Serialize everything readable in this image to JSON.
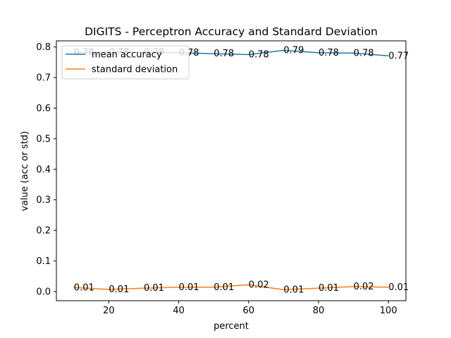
{
  "chart_data": {
    "type": "line",
    "title": "DIGITS - Perceptron Accuracy and Standard Deviation",
    "xlabel": "percent",
    "ylabel": "value (acc or std)",
    "xlim": [
      5,
      105
    ],
    "ylim": [
      -0.03,
      0.82
    ],
    "xticks": [
      20,
      40,
      60,
      80,
      100
    ],
    "yticks": [
      0.0,
      0.1,
      0.2,
      0.3,
      0.4,
      0.5,
      0.6,
      0.7,
      0.8
    ],
    "ytick_labels": [
      "0.0",
      "0.1",
      "0.2",
      "0.3",
      "0.4",
      "0.5",
      "0.6",
      "0.7",
      "0.8"
    ],
    "grid": false,
    "legend_position": "upper-left",
    "x": [
      10,
      20,
      30,
      40,
      50,
      60,
      70,
      80,
      90,
      100
    ],
    "series": [
      {
        "name": "mean accuracy",
        "color": "#1f77b4",
        "values": [
          0.782,
          0.783,
          0.783,
          0.781,
          0.778,
          0.775,
          0.789,
          0.781,
          0.78,
          0.771
        ],
        "labels": [
          "0.78",
          "0.78",
          "0.78",
          "0.78",
          "0.78",
          "0.78",
          "0.79",
          "0.78",
          "0.78",
          "0.77"
        ]
      },
      {
        "name": "standard deviation",
        "color": "#ff7f0e",
        "values": [
          0.013,
          0.007,
          0.011,
          0.014,
          0.014,
          0.022,
          0.006,
          0.011,
          0.016,
          0.014
        ],
        "labels": [
          "0.01",
          "0.01",
          "0.01",
          "0.01",
          "0.01",
          "0.02",
          "0.01",
          "0.01",
          "0.02",
          "0.01"
        ]
      }
    ]
  }
}
